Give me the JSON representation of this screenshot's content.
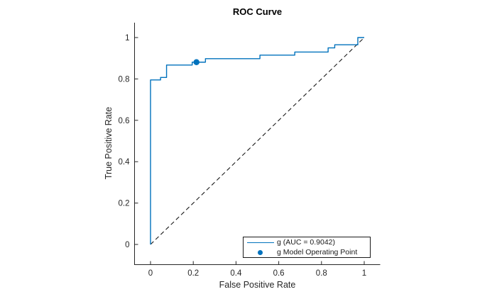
{
  "figure": {
    "title": "ROC Curve",
    "xlabel": "False Positive Rate",
    "ylabel": "True Positive Rate"
  },
  "legend": {
    "position": "bottom-right",
    "items": [
      {
        "label": "g (AUC = 0.9042)",
        "marker": "line",
        "color": "#0072BD"
      },
      {
        "label": "g Model Operating Point",
        "marker": "dot",
        "color": "#0072BD"
      }
    ]
  },
  "chart_data": {
    "type": "line",
    "title": "ROC Curve",
    "xlabel": "False Positive Rate",
    "ylabel": "True Positive Rate",
    "xlim": [
      -0.075,
      1.075
    ],
    "ylim": [
      -0.098,
      1.072
    ],
    "grid": false,
    "axes_color": "#262626",
    "xticks": [
      0,
      0.2,
      0.4,
      0.6,
      0.8,
      1
    ],
    "xtick_labels": [
      "0",
      "0.2",
      "0.4",
      "0.6",
      "0.8",
      "1"
    ],
    "yticks": [
      0,
      0.2,
      0.4,
      0.6,
      0.8,
      1
    ],
    "ytick_labels": [
      "0",
      "0.2",
      "0.4",
      "0.6",
      "0.8",
      "1"
    ],
    "auc": 0.9042,
    "series": [
      {
        "name": "g (AUC = 0.9042)",
        "style": "solid",
        "color": "#0072BD",
        "points": [
          [
            0,
            0
          ],
          [
            0,
            0.795
          ],
          [
            0.047,
            0.795
          ],
          [
            0.047,
            0.807
          ],
          [
            0.075,
            0.807
          ],
          [
            0.075,
            0.867
          ],
          [
            0.195,
            0.867
          ],
          [
            0.195,
            0.881
          ],
          [
            0.257,
            0.881
          ],
          [
            0.257,
            0.898
          ],
          [
            0.512,
            0.898
          ],
          [
            0.512,
            0.915
          ],
          [
            0.675,
            0.915
          ],
          [
            0.675,
            0.93
          ],
          [
            0.831,
            0.93
          ],
          [
            0.831,
            0.95
          ],
          [
            0.862,
            0.95
          ],
          [
            0.862,
            0.965
          ],
          [
            0.97,
            0.965
          ],
          [
            0.97,
            1
          ],
          [
            1,
            1
          ]
        ]
      },
      {
        "name": "reference-diagonal",
        "style": "dashed",
        "color": "#1a1a1a",
        "points": [
          [
            0,
            0
          ],
          [
            1,
            1
          ]
        ]
      }
    ],
    "operating_point": {
      "name": "g Model Operating Point",
      "x": 0.215,
      "y": 0.881,
      "color": "#0072BD"
    }
  }
}
